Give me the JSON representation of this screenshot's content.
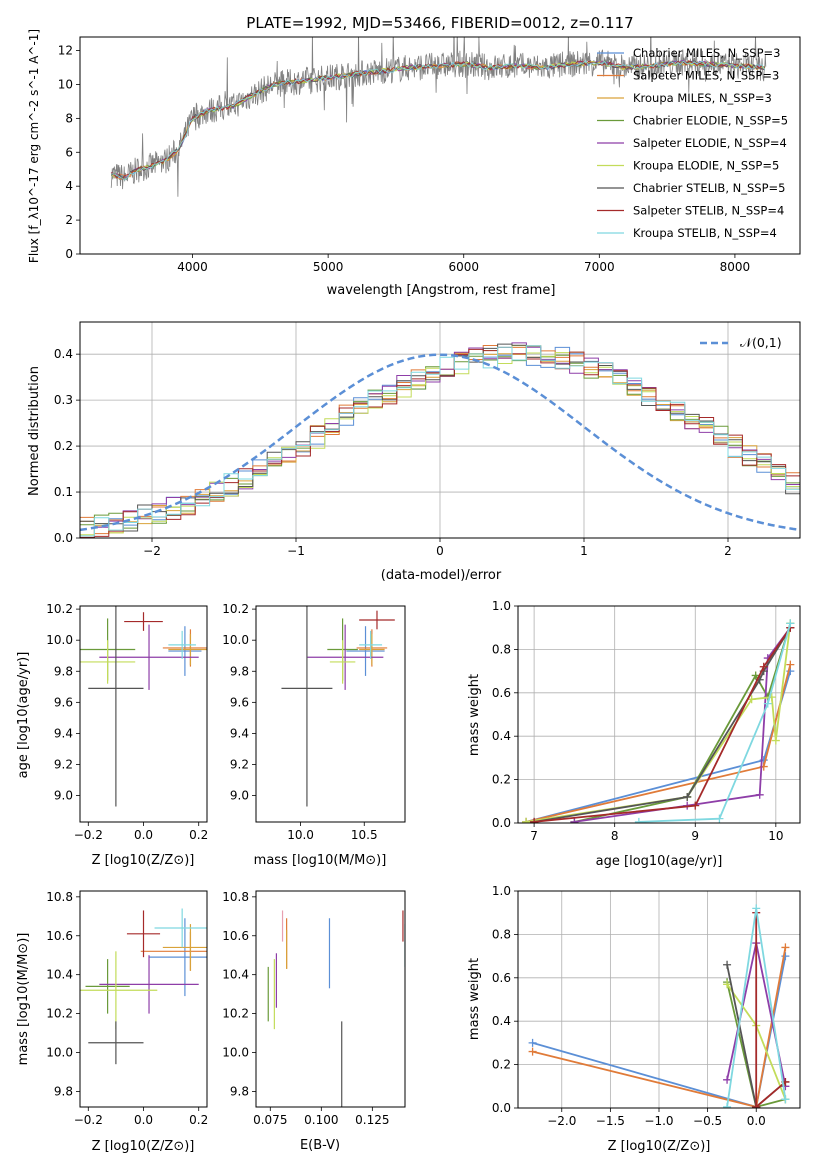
{
  "colors": {
    "blue": "#5b8fd6",
    "orange": "#e07b39",
    "gold": "#d9a23a",
    "green": "#6a9a3a",
    "purple": "#8e3ea8",
    "lime": "#c3dc5a",
    "dark": "#555555",
    "red": "#a52a2a",
    "cyan": "#7fd8e0",
    "gray": "#808080"
  },
  "chart_data": [
    {
      "type": "line",
      "title": "PLATE=1992, MJD=53466, FIBERID=0012, z=0.117",
      "xlabel": "wavelength [Angstrom, rest frame]",
      "ylabel": "Flux [f_λ10^-17 erg cm^-2 s^-1 A^-1]",
      "xlim": [
        3170,
        8480
      ],
      "ylim": [
        0,
        12.8
      ],
      "xticks": [
        "4000",
        "5000",
        "6000",
        "7000",
        "8000"
      ],
      "yticks": [
        "0",
        "2",
        "4",
        "6",
        "8",
        "10",
        "12"
      ],
      "legend_position": "right",
      "series": [
        {
          "name": "Chabrier MILES, N_SSP=3",
          "color": "#5b8fd6"
        },
        {
          "name": "Salpeter MILES, N_SSP=3",
          "color": "#e07b39"
        },
        {
          "name": "Kroupa MILES, N_SSP=3",
          "color": "#d9a23a"
        },
        {
          "name": "Chabrier ELODIE, N_SSP=5",
          "color": "#6a9a3a"
        },
        {
          "name": "Salpeter ELODIE, N_SSP=4",
          "color": "#8e3ea8"
        },
        {
          "name": "Kroupa ELODIE, N_SSP=5",
          "color": "#c3dc5a"
        },
        {
          "name": "Chabrier STELIB, N_SSP=5",
          "color": "#555555"
        },
        {
          "name": "Salpeter STELIB, N_SSP=4",
          "color": "#a52a2a"
        },
        {
          "name": "Kroupa STELIB, N_SSP=4",
          "color": "#7fd8e0"
        }
      ],
      "model_curve": {
        "x": [
          3400,
          3500,
          3600,
          3700,
          3800,
          3900,
          4000,
          4100,
          4200,
          4300,
          4400,
          4500,
          4600,
          4800,
          5000,
          5200,
          5400,
          5600,
          5800,
          6000,
          6200,
          6400,
          6600,
          6800,
          7000,
          7200,
          7400,
          7600,
          7800,
          8000,
          8230
        ],
        "y": [
          4.7,
          4.5,
          5.0,
          5.2,
          5.5,
          6.2,
          8.0,
          8.4,
          8.6,
          8.7,
          9.2,
          9.6,
          10.0,
          10.2,
          10.4,
          10.6,
          10.8,
          11.0,
          11.1,
          11.2,
          11.0,
          11.1,
          11.0,
          11.2,
          11.3,
          11.0,
          11.1,
          11.3,
          11.2,
          11.1,
          11.0
        ]
      }
    },
    {
      "type": "bar",
      "xlabel": "(data-model)/error",
      "ylabel": "Normed distribution",
      "xlim": [
        -2.5,
        2.5
      ],
      "ylim": [
        0,
        0.47
      ],
      "xticks": [
        "−2",
        "−1",
        "0",
        "1",
        "2"
      ],
      "yticks": [
        "0.0",
        "0.1",
        "0.2",
        "0.3",
        "0.4"
      ],
      "grid": true,
      "legend_position": "top-right",
      "reference": {
        "name": "𝒩(0,1)",
        "color": "#5b8fd6",
        "style": "dashed"
      },
      "bin_width": 0.1,
      "base_hist": [
        0.02,
        0.025,
        0.03,
        0.04,
        0.05,
        0.055,
        0.065,
        0.075,
        0.09,
        0.1,
        0.115,
        0.13,
        0.15,
        0.165,
        0.18,
        0.2,
        0.22,
        0.245,
        0.265,
        0.29,
        0.3,
        0.315,
        0.33,
        0.345,
        0.36,
        0.37,
        0.38,
        0.39,
        0.395,
        0.4,
        0.4,
        0.4,
        0.395,
        0.39,
        0.38,
        0.37,
        0.36,
        0.345,
        0.33,
        0.31,
        0.295,
        0.28,
        0.26,
        0.24,
        0.22,
        0.2,
        0.18,
        0.16,
        0.14,
        0.12,
        0.105,
        0.09,
        0.075,
        0.065,
        0.055,
        0.045,
        0.04,
        0.035,
        0.03,
        0.025
      ]
    },
    {
      "type": "scatter",
      "xlabel": "Z [log10(Z/Z⊙)]",
      "ylabel": "age [log10(age/yr)]",
      "xlim": [
        -0.23,
        0.23
      ],
      "ylim": [
        8.83,
        10.22
      ],
      "xticks": [
        "−0.2",
        "0.0",
        "0.2"
      ],
      "yticks": [
        "9.0",
        "9.2",
        "9.4",
        "9.6",
        "9.8",
        "10.0",
        "10.2"
      ],
      "points": [
        {
          "x": 0.15,
          "y": 9.93,
          "xerr": 0.06,
          "yerr": 0.16,
          "color": "#5b8fd6"
        },
        {
          "x": 0.17,
          "y": 9.95,
          "xerr": 0.1,
          "yerr": 0.12,
          "color": "#e07b39"
        },
        {
          "x": 0.17,
          "y": 9.94,
          "xerr": 0.08,
          "yerr": 0.1,
          "color": "#d9a23a"
        },
        {
          "x": -0.13,
          "y": 9.94,
          "xerr": 0.1,
          "yerr": 0.2,
          "color": "#6a9a3a"
        },
        {
          "x": 0.02,
          "y": 9.89,
          "xerr": 0.18,
          "yerr": 0.21,
          "color": "#8e3ea8"
        },
        {
          "x": -0.13,
          "y": 9.86,
          "xerr": 0.1,
          "yerr": 0.14,
          "color": "#c3dc5a"
        },
        {
          "x": -0.1,
          "y": 9.69,
          "xerr": 0.1,
          "yerr": 0.76,
          "color": "#555555"
        },
        {
          "x": 0.0,
          "y": 10.12,
          "xerr": 0.07,
          "yerr": 0.06,
          "color": "#a52a2a"
        },
        {
          "x": 0.14,
          "y": 9.97,
          "xerr": 0.05,
          "yerr": 0.09,
          "color": "#7fd8e0"
        }
      ]
    },
    {
      "type": "scatter",
      "xlabel": "mass [log10(M/M⊙)]",
      "xlim": [
        9.65,
        10.82
      ],
      "ylim": [
        8.83,
        10.22
      ],
      "xticks": [
        "10.0",
        "10.5"
      ],
      "yticks": [
        "9.0",
        "9.2",
        "9.4",
        "9.6",
        "9.8",
        "10.0",
        "10.2"
      ],
      "points": [
        {
          "x": 10.51,
          "y": 9.93,
          "xerr": 0.15,
          "yerr": 0.16,
          "color": "#5b8fd6"
        },
        {
          "x": 10.56,
          "y": 9.95,
          "xerr": 0.12,
          "yerr": 0.12,
          "color": "#e07b39"
        },
        {
          "x": 10.56,
          "y": 9.94,
          "xerr": 0.1,
          "yerr": 0.1,
          "color": "#d9a23a"
        },
        {
          "x": 10.33,
          "y": 9.94,
          "xerr": 0.12,
          "yerr": 0.2,
          "color": "#6a9a3a"
        },
        {
          "x": 10.35,
          "y": 9.89,
          "xerr": 0.3,
          "yerr": 0.21,
          "color": "#8e3ea8"
        },
        {
          "x": 10.33,
          "y": 9.86,
          "xerr": 0.1,
          "yerr": 0.14,
          "color": "#c3dc5a"
        },
        {
          "x": 10.05,
          "y": 9.69,
          "xerr": 0.2,
          "yerr": 0.76,
          "color": "#555555"
        },
        {
          "x": 10.6,
          "y": 10.13,
          "xerr": 0.14,
          "yerr": 0.06,
          "color": "#a52a2a"
        },
        {
          "x": 10.55,
          "y": 9.97,
          "xerr": 0.09,
          "yerr": 0.09,
          "color": "#7fd8e0"
        }
      ]
    },
    {
      "type": "line",
      "xlabel": "age [log10(age/yr)]",
      "ylabel": "mass weight",
      "xlim": [
        6.8,
        10.3
      ],
      "ylim": [
        0,
        1.0
      ],
      "xticks": [
        "7",
        "8",
        "9",
        "10"
      ],
      "yticks": [
        "0.0",
        "0.2",
        "0.4",
        "0.6",
        "0.8",
        "1.0"
      ],
      "grid": true,
      "series": [
        {
          "color": "#5b8fd6",
          "x": [
            6.9,
            9.85,
            10.18
          ],
          "y": [
            0.005,
            0.29,
            0.7
          ]
        },
        {
          "color": "#e07b39",
          "x": [
            6.9,
            9.85,
            10.18
          ],
          "y": [
            0.005,
            0.26,
            0.73
          ]
        },
        {
          "color": "#6a9a3a",
          "x": [
            7.5,
            8.9,
            9.75,
            9.9,
            10.18
          ],
          "y": [
            0.005,
            0.12,
            0.68,
            0.58,
            0.92
          ]
        },
        {
          "color": "#8e3ea8",
          "x": [
            7.5,
            8.9,
            9.8,
            9.9,
            10.18
          ],
          "y": [
            0.005,
            0.08,
            0.13,
            0.76,
            0.9
          ]
        },
        {
          "color": "#c3dc5a",
          "x": [
            6.9,
            8.9,
            9.7,
            9.95,
            10.0,
            10.18
          ],
          "y": [
            0.005,
            0.12,
            0.57,
            0.58,
            0.38,
            0.92
          ]
        },
        {
          "color": "#555555",
          "x": [
            7.0,
            8.9,
            9.8,
            9.85,
            10.18
          ],
          "y": [
            0.005,
            0.12,
            0.66,
            0.7,
            0.9
          ]
        },
        {
          "color": "#a52a2a",
          "x": [
            7.0,
            9.0,
            9.85,
            10.18
          ],
          "y": [
            0.005,
            0.08,
            0.72,
            0.9
          ]
        },
        {
          "color": "#7fd8e0",
          "x": [
            8.3,
            9.3,
            9.9,
            10.18
          ],
          "y": [
            0.005,
            0.02,
            0.55,
            0.92
          ]
        }
      ]
    },
    {
      "type": "scatter",
      "xlabel": "Z [log10(Z/Z⊙)]",
      "ylabel": "mass [log10(M/M⊙)]",
      "xlim": [
        -0.23,
        0.23
      ],
      "ylim": [
        9.72,
        10.83
      ],
      "xticks": [
        "−0.2",
        "0.0",
        "0.2"
      ],
      "yticks": [
        "9.8",
        "10.0",
        "10.2",
        "10.4",
        "10.6",
        "10.8"
      ],
      "points": [
        {
          "x": 0.15,
          "y": 10.49,
          "xerr": 0.13,
          "yerr": 0.2,
          "color": "#5b8fd6"
        },
        {
          "x": 0.17,
          "y": 10.52,
          "xerr": 0.18,
          "yerr": 0.1,
          "color": "#e07b39"
        },
        {
          "x": 0.17,
          "y": 10.54,
          "xerr": 0.1,
          "yerr": 0.12,
          "color": "#d9a23a"
        },
        {
          "x": -0.13,
          "y": 10.34,
          "xerr": 0.08,
          "yerr": 0.14,
          "color": "#6a9a3a"
        },
        {
          "x": 0.02,
          "y": 10.35,
          "xerr": 0.18,
          "yerr": 0.15,
          "color": "#8e3ea8"
        },
        {
          "x": -0.1,
          "y": 10.32,
          "xerr": 0.15,
          "yerr": 0.2,
          "color": "#c3dc5a"
        },
        {
          "x": -0.1,
          "y": 10.05,
          "xerr": 0.1,
          "yerr": 0.11,
          "color": "#555555"
        },
        {
          "x": 0.0,
          "y": 10.61,
          "xerr": 0.06,
          "yerr": 0.12,
          "color": "#a52a2a"
        },
        {
          "x": 0.14,
          "y": 10.64,
          "xerr": 0.1,
          "yerr": 0.1,
          "color": "#7fd8e0"
        }
      ]
    },
    {
      "type": "scatter",
      "xlabel": "E(B-V)",
      "xlim": [
        0.068,
        0.141
      ],
      "ylim": [
        9.72,
        10.83
      ],
      "xticks": [
        "0.075",
        "0.100",
        "0.125"
      ],
      "yticks": [
        "9.8",
        "10.0",
        "10.2",
        "10.4",
        "10.6",
        "10.8"
      ],
      "points": [
        {
          "x": 0.104,
          "y": 10.51,
          "yerr": 0.18,
          "color": "#5b8fd6"
        },
        {
          "x": 0.083,
          "y": 10.56,
          "yerr": 0.13,
          "color": "#e07b39"
        },
        {
          "x": 0.083,
          "y": 10.53,
          "yerr": 0.1,
          "color": "#d9a23a"
        },
        {
          "x": 0.074,
          "y": 10.3,
          "yerr": 0.14,
          "color": "#6a9a3a"
        },
        {
          "x": 0.078,
          "y": 10.37,
          "yerr": 0.14,
          "color": "#8e3ea8"
        },
        {
          "x": 0.077,
          "y": 10.3,
          "yerr": 0.18,
          "color": "#c3dc5a"
        },
        {
          "x": 0.11,
          "y": 9.93,
          "yerr": 0.23,
          "color": "#555555"
        },
        {
          "x": 0.14,
          "y": 10.65,
          "yerr": 0.08,
          "color": "#a52a2a"
        },
        {
          "x": 0.141,
          "y": 10.55,
          "yerr": 0.11,
          "color": "#7fd8e0"
        },
        {
          "x": 0.081,
          "y": 10.65,
          "yerr": 0.08,
          "color": "#e8a0b0"
        }
      ]
    },
    {
      "type": "line",
      "xlabel": "Z [log10(Z/Z⊙)]",
      "ylabel": "mass weight",
      "xlim": [
        -2.45,
        0.45
      ],
      "ylim": [
        0,
        1.0
      ],
      "xticks": [
        "−2.0",
        "−1.5",
        "−1.0",
        "−0.5",
        "0.0"
      ],
      "yticks": [
        "0.0",
        "0.2",
        "0.4",
        "0.6",
        "0.8",
        "1.0"
      ],
      "grid": true,
      "series": [
        {
          "color": "#5b8fd6",
          "x": [
            -2.3,
            0.0,
            0.3
          ],
          "y": [
            0.3,
            0.005,
            0.7
          ]
        },
        {
          "color": "#e07b39",
          "x": [
            -2.3,
            0.0,
            0.3
          ],
          "y": [
            0.26,
            0.005,
            0.74
          ]
        },
        {
          "color": "#6a9a3a",
          "x": [
            -0.3,
            0.0,
            0.3
          ],
          "y": [
            0.58,
            0.005,
            0.04
          ]
        },
        {
          "color": "#8e3ea8",
          "x": [
            -0.3,
            0.0,
            0.3
          ],
          "y": [
            0.13,
            0.76,
            0.1
          ]
        },
        {
          "color": "#c3dc5a",
          "x": [
            -0.3,
            0.0,
            0.3
          ],
          "y": [
            0.57,
            0.38,
            0.04
          ]
        },
        {
          "color": "#555555",
          "x": [
            -0.3,
            0.0,
            0.3
          ],
          "y": [
            0.66,
            0.005,
            0.12
          ]
        },
        {
          "color": "#a52a2a",
          "x": [
            0.0,
            0.0,
            0.3
          ],
          "y": [
            0.9,
            0.005,
            0.12
          ]
        },
        {
          "color": "#7fd8e0",
          "x": [
            -0.3,
            0.0,
            0.3
          ],
          "y": [
            0.005,
            0.92,
            0.04
          ]
        }
      ]
    }
  ]
}
